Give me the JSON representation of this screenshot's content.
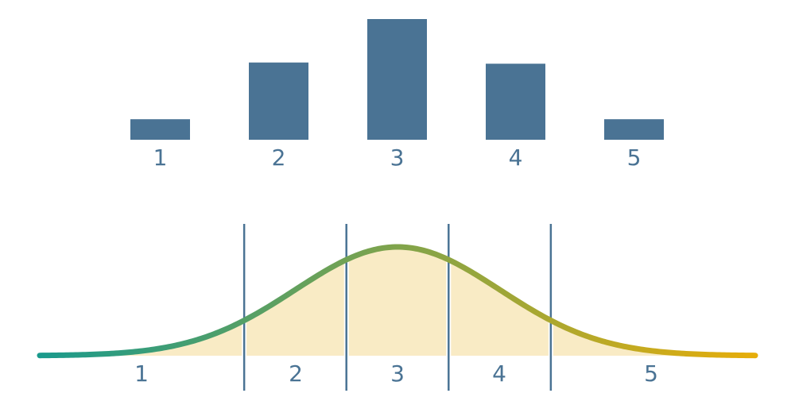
{
  "colors": {
    "bar": "#4a7394",
    "label": "#4a7394",
    "divider": "#4a7394",
    "curve_start": "#1a9a8c",
    "curve_end": "#e6ad0a",
    "fill": "#f9ebc5"
  },
  "chart_data": [
    {
      "type": "bar",
      "categories": [
        "1",
        "2",
        "3",
        "4",
        "5"
      ],
      "values": [
        1.7,
        6.4,
        10,
        6.3,
        1.7
      ],
      "ylim": [
        0,
        10
      ],
      "title": "",
      "xlabel": "",
      "ylabel": "",
      "grid": false,
      "legend": "none"
    },
    {
      "type": "area",
      "distribution": "normal",
      "mean": 0,
      "sd": 1,
      "xlim": [
        -3.5,
        3.5
      ],
      "thresholds": [
        -1.5,
        -0.5,
        0.5,
        1.5
      ],
      "regions": [
        "1",
        "2",
        "3",
        "4",
        "5"
      ],
      "title": "",
      "xlabel": "",
      "ylabel": "",
      "grid": false,
      "legend": "none"
    }
  ]
}
